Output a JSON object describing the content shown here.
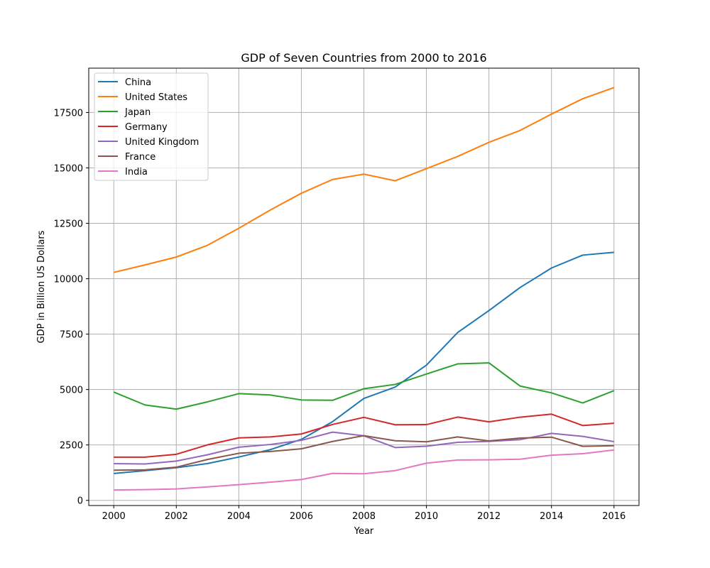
{
  "chart_data": {
    "type": "line",
    "title": "GDP of Seven Countries from 2000 to 2016",
    "xlabel": "Year",
    "ylabel": "GDP in Billion US Dollars",
    "xlim": [
      1999.2,
      2016.8
    ],
    "ylim": [
      -233,
      19500
    ],
    "grid": true,
    "legend_position": "upper-left",
    "x": [
      2000,
      2001,
      2002,
      2003,
      2004,
      2005,
      2006,
      2007,
      2008,
      2009,
      2010,
      2011,
      2012,
      2013,
      2014,
      2015,
      2016
    ],
    "x_ticks": [
      2000,
      2002,
      2004,
      2006,
      2008,
      2010,
      2012,
      2014,
      2016
    ],
    "x_tick_labels": [
      "2000",
      "2002",
      "2004",
      "2006",
      "2008",
      "2010",
      "2012",
      "2014",
      "2016"
    ],
    "y_ticks": [
      0,
      2500,
      5000,
      7500,
      10000,
      12500,
      15000,
      17500
    ],
    "y_tick_labels": [
      "0",
      "2500",
      "5000",
      "7500",
      "10000",
      "12500",
      "15000",
      "17500"
    ],
    "series": [
      {
        "name": "China",
        "color": "#1f77b4",
        "values": [
          1211,
          1339,
          1471,
          1660,
          1955,
          2286,
          2752,
          3552,
          4598,
          5110,
          6101,
          7573,
          8561,
          9607,
          10482,
          11065,
          11191
        ]
      },
      {
        "name": "United States",
        "color": "#ff7f0e",
        "values": [
          10285,
          10622,
          10978,
          11511,
          12275,
          13094,
          13856,
          14478,
          14719,
          14419,
          14964,
          15518,
          16155,
          16692,
          17428,
          18121,
          18625
        ]
      },
      {
        "name": "Japan",
        "color": "#2ca02c",
        "values": [
          4888,
          4304,
          4115,
          4445,
          4815,
          4755,
          4530,
          4515,
          5038,
          5231,
          5700,
          6157,
          6203,
          5156,
          4850,
          4395,
          4949
        ]
      },
      {
        "name": "Germany",
        "color": "#d62728",
        "values": [
          1950,
          1950,
          2079,
          2505,
          2819,
          2861,
          2994,
          3425,
          3745,
          3411,
          3417,
          3758,
          3544,
          3753,
          3890,
          3376,
          3479
        ]
      },
      {
        "name": "United Kingdom",
        "color": "#9467bd",
        "values": [
          1658,
          1641,
          1772,
          2058,
          2398,
          2520,
          2708,
          3079,
          2912,
          2383,
          2441,
          2619,
          2662,
          2740,
          3023,
          2886,
          2651
        ]
      },
      {
        "name": "France",
        "color": "#8c564b",
        "values": [
          1362,
          1377,
          1495,
          1846,
          2124,
          2204,
          2325,
          2657,
          2918,
          2690,
          2643,
          2861,
          2683,
          2811,
          2852,
          2438,
          2466
        ]
      },
      {
        "name": "India",
        "color": "#e377c2",
        "values": [
          468,
          485,
          515,
          607,
          709,
          820,
          940,
          1217,
          1199,
          1342,
          1676,
          1823,
          1828,
          1857,
          2039,
          2104,
          2274
        ]
      }
    ]
  }
}
